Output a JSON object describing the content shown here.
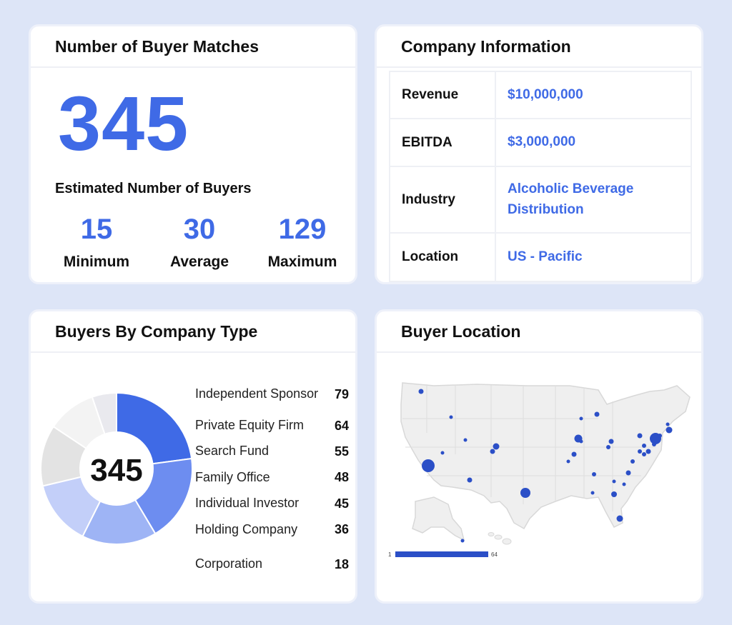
{
  "matches": {
    "title": "Number of Buyer Matches",
    "total": "345",
    "subtitle": "Estimated Number of Buyers",
    "stats": [
      {
        "value": "15",
        "label": "Minimum"
      },
      {
        "value": "30",
        "label": "Average"
      },
      {
        "value": "129",
        "label": "Maximum"
      }
    ]
  },
  "company": {
    "title": "Company Information",
    "rows": [
      {
        "key": "Revenue",
        "value": "$10,000,000"
      },
      {
        "key": "EBITDA",
        "value": "$3,000,000"
      },
      {
        "key": "Industry",
        "value": "Alcoholic Beverage Distribution"
      },
      {
        "key": "Location",
        "value": "US - Pacific"
      }
    ]
  },
  "types": {
    "title": "Buyers By Company Type",
    "center_label": "345",
    "items": [
      {
        "label": "Independent Sponsor",
        "value": "79",
        "color": "#3f6ae6"
      },
      {
        "label": "Private Equity Firm",
        "value": "64",
        "color": "#6d8df0"
      },
      {
        "label": "Search Fund",
        "value": "55",
        "color": "#9eb4f5"
      },
      {
        "label": "Family Office",
        "value": "48",
        "color": "#c3cff9"
      },
      {
        "label": "Individual Investor",
        "value": "45",
        "color": "#e3e3e3"
      },
      {
        "label": "Holding Company",
        "value": "36",
        "color": "#f3f3f3"
      },
      {
        "label": "Corporation",
        "value": "18",
        "color": "#e9e9ee"
      }
    ]
  },
  "location": {
    "title": "Buyer Location",
    "scale_min": "1",
    "scale_max": "64",
    "marker_color": "#2b4fc7"
  }
}
